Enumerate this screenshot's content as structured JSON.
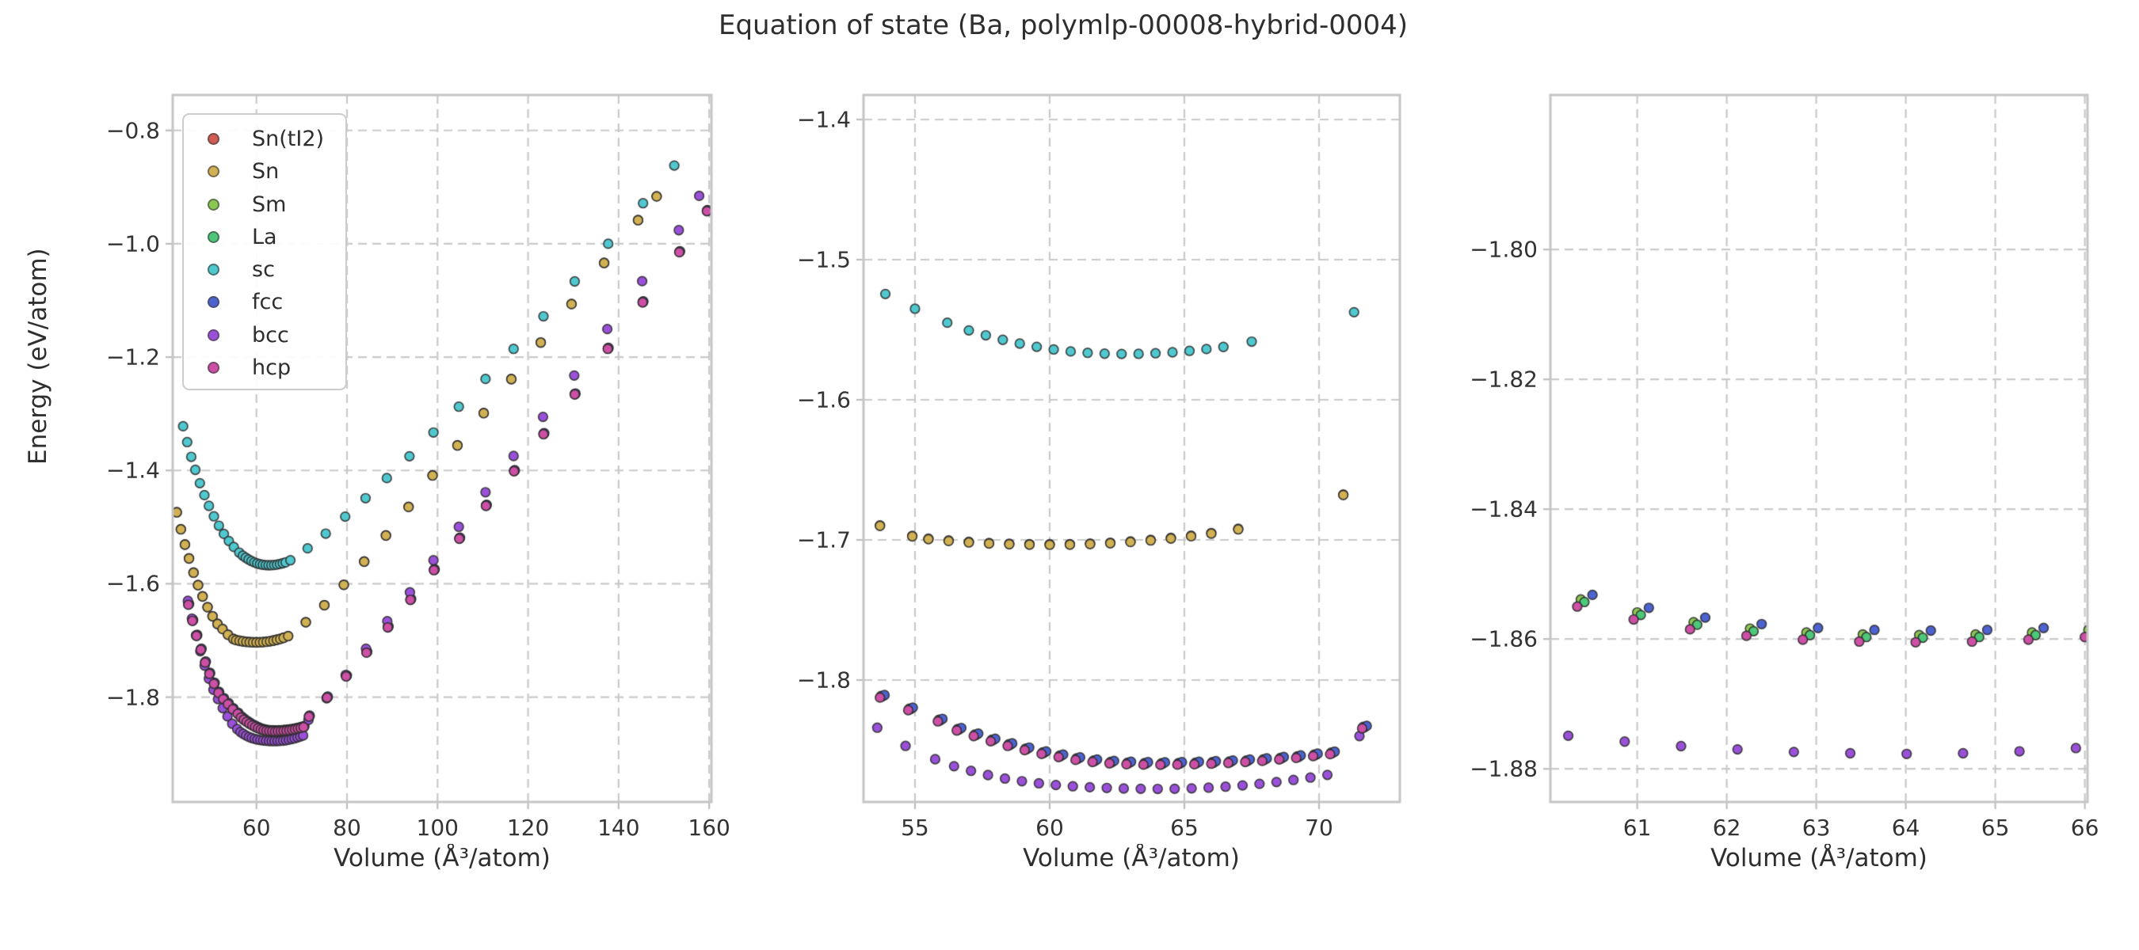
{
  "title": "Equation of state (Ba, polymlp-00008-hybrid-0004)",
  "ylabel_text": "Energy (eV/atom)",
  "legend": {
    "items": [
      {
        "label": "Sn(tI2)",
        "color": "#d05c52"
      },
      {
        "label": "Sn",
        "color": "#d1b153"
      },
      {
        "label": "Sm",
        "color": "#8bc853"
      },
      {
        "label": "La",
        "color": "#4cc878"
      },
      {
        "label": "sc",
        "color": "#4fc8cf"
      },
      {
        "label": "fcc",
        "color": "#4d63d2"
      },
      {
        "label": "bcc",
        "color": "#9b50da"
      },
      {
        "label": "hcp",
        "color": "#cd4fa6"
      }
    ]
  },
  "style": {
    "grid_color": "#c9c9c9",
    "spine_color": "#c5c5c5",
    "tick_color": "#bdbdbd",
    "marker_edge": "rgba(42,42,42,0.85)",
    "text_color": "#2e2e2e"
  },
  "chart_data": {
    "type": "scatter",
    "title": "Equation of state (Ba, polymlp-00008-hybrid-0004)",
    "xlabel": "Volume (Å³/atom)",
    "ylabel": "Energy (eV/atom)",
    "grid": "dashed",
    "legend_position": "upper-left of first panel",
    "panels": [
      {
        "xlabel": "Volume (Å³/atom)",
        "xlim": [
          41.5,
          160.5
        ],
        "ylim": [
          -1.985,
          -0.7375
        ],
        "xticks": [
          60,
          80,
          100,
          120,
          140,
          160
        ],
        "xtick_labels": [
          "60",
          "80",
          "100",
          "120",
          "140",
          "160"
        ],
        "yticks": [
          -0.8,
          -1.0,
          -1.2,
          -1.4,
          -1.6,
          -1.8
        ],
        "ytick_labels": [
          "−0.8",
          "−1.0",
          "−1.2",
          "−1.4",
          "−1.6",
          "−1.8"
        ]
      },
      {
        "xlabel": "Volume (Å³/atom)",
        "xlim": [
          53.09,
          73.0
        ],
        "ylim": [
          -1.887,
          -1.3825
        ],
        "xticks": [
          55,
          60,
          65,
          70
        ],
        "xtick_labels": [
          "55",
          "60",
          "65",
          "70"
        ],
        "yticks": [
          -1.4,
          -1.5,
          -1.6,
          -1.7,
          -1.8
        ],
        "ytick_labels": [
          "−1.4",
          "−1.5",
          "−1.6",
          "−1.7",
          "−1.8"
        ]
      },
      {
        "xlabel": "Volume (Å³/atom)",
        "xlim": [
          60.03,
          66.03
        ],
        "ylim": [
          -1.8851,
          -1.7762
        ],
        "xticks": [
          61,
          62,
          63,
          64,
          65,
          66
        ],
        "xtick_labels": [
          "61",
          "62",
          "63",
          "64",
          "65",
          "66"
        ],
        "yticks": [
          -1.8,
          -1.82,
          -1.84,
          -1.86,
          -1.88
        ],
        "ytick_labels": [
          "−1.80",
          "−1.82",
          "−1.84",
          "−1.86",
          "−1.88"
        ]
      }
    ],
    "series": [
      {
        "name": "Sn(tI2)",
        "color": "#d05c52",
        "V": [
          42.4,
          43.3,
          44.2,
          45.1,
          46.1,
          47.1,
          48.1,
          49.2,
          50.3,
          51.4,
          52.5,
          53.7,
          54.9,
          55.5,
          56.25,
          57.0,
          57.75,
          58.5,
          59.25,
          60.0,
          60.75,
          61.5,
          62.25,
          63.0,
          63.75,
          64.5,
          65.25,
          66.0,
          67.0,
          70.9,
          75.0,
          79.3,
          83.8,
          88.6,
          93.6,
          98.9,
          104.4,
          110.2,
          116.3,
          122.8,
          129.6,
          136.8,
          144.3,
          148.4
        ],
        "E": [
          -1.4736,
          -1.5036,
          -1.5306,
          -1.5551,
          -1.5801,
          -1.6021,
          -1.6221,
          -1.6411,
          -1.6571,
          -1.6706,
          -1.6796,
          -1.6896,
          -1.6971,
          -1.6991,
          -1.7004,
          -1.7014,
          -1.7022,
          -1.7027,
          -1.703,
          -1.7031,
          -1.703,
          -1.7026,
          -1.702,
          -1.7011,
          -1.7,
          -1.6986,
          -1.697,
          -1.6951,
          -1.6921,
          -1.6676,
          -1.6376,
          -1.6016,
          -1.5606,
          -1.5146,
          -1.4641,
          -1.4086,
          -1.3556,
          -1.2986,
          -1.2386,
          -1.1741,
          -1.1061,
          -1.0336,
          -0.9581,
          -0.9161
        ]
      },
      {
        "name": "Sn",
        "color": "#d1b153",
        "V": [
          42.4,
          43.3,
          44.2,
          45.1,
          46.1,
          47.1,
          48.1,
          49.2,
          50.3,
          51.4,
          52.5,
          53.7,
          54.9,
          55.5,
          56.25,
          57.0,
          57.75,
          58.5,
          59.25,
          60.0,
          60.75,
          61.5,
          62.25,
          63.0,
          63.75,
          64.5,
          65.25,
          66.0,
          67.0,
          70.9,
          75.0,
          79.3,
          83.8,
          88.6,
          93.6,
          98.9,
          104.4,
          110.2,
          116.3,
          122.8,
          129.6,
          136.8,
          144.3,
          148.4
        ],
        "E": [
          -1.474,
          -1.504,
          -1.531,
          -1.5555,
          -1.5805,
          -1.6025,
          -1.6225,
          -1.6415,
          -1.6575,
          -1.671,
          -1.68,
          -1.69,
          -1.6975,
          -1.6995,
          -1.7008,
          -1.7018,
          -1.7026,
          -1.7031,
          -1.7034,
          -1.7035,
          -1.7034,
          -1.703,
          -1.7024,
          -1.7015,
          -1.7004,
          -1.699,
          -1.6974,
          -1.6955,
          -1.6925,
          -1.668,
          -1.638,
          -1.602,
          -1.561,
          -1.515,
          -1.4645,
          -1.409,
          -1.356,
          -1.299,
          -1.239,
          -1.1745,
          -1.1065,
          -1.034,
          -0.9585,
          -0.9165
        ]
      },
      {
        "name": "Sm",
        "color": "#8bc853",
        "V": [
          44.99,
          45.89,
          46.79,
          47.74,
          48.69,
          49.64,
          50.64,
          51.64,
          52.69,
          53.74,
          54.79,
          55.89,
          56.59,
          57.22,
          57.85,
          58.48,
          59.11,
          59.74,
          60.37,
          61.0,
          61.63,
          62.26,
          62.89,
          63.52,
          64.15,
          64.78,
          65.41,
          66.04,
          66.67,
          67.3,
          67.93,
          68.56,
          69.19,
          69.82,
          70.45,
          71.64,
          75.64,
          79.84,
          84.34,
          89.04,
          94.04,
          99.24,
          104.84,
          110.74,
          116.94,
          123.44,
          130.34,
          137.64,
          145.34,
          153.44,
          159.54
        ],
        "E": [
          -1.6359,
          -1.6644,
          -1.6909,
          -1.7154,
          -1.7379,
          -1.7579,
          -1.7754,
          -1.7914,
          -1.8024,
          -1.8114,
          -1.8204,
          -1.8284,
          -1.8349,
          -1.8389,
          -1.8426,
          -1.8459,
          -1.8489,
          -1.8516,
          -1.8539,
          -1.8559,
          -1.8574,
          -1.8584,
          -1.859,
          -1.8593,
          -1.8594,
          -1.8593,
          -1.859,
          -1.8586,
          -1.8581,
          -1.8574,
          -1.8566,
          -1.8556,
          -1.8545,
          -1.8532,
          -1.8518,
          -1.8334,
          -1.7999,
          -1.7624,
          -1.7204,
          -1.6759,
          -1.6274,
          -1.5749,
          -1.5194,
          -1.4614,
          -1.4004,
          -1.3349,
          -1.2649,
          -1.1844,
          -1.1024,
          -1.0139,
          -0.9414
        ]
      },
      {
        "name": "La",
        "color": "#4cc878",
        "V": [
          45.03,
          45.93,
          46.83,
          47.78,
          48.73,
          49.68,
          50.68,
          51.68,
          52.73,
          53.78,
          54.83,
          55.93,
          56.63,
          57.26,
          57.89,
          58.52,
          59.15,
          59.78,
          60.41,
          61.04,
          61.67,
          62.3,
          62.93,
          63.56,
          64.19,
          64.82,
          65.45,
          66.08,
          66.71,
          67.34,
          67.97,
          68.6,
          69.23,
          69.86,
          70.49,
          71.68,
          75.68,
          79.88,
          84.38,
          89.08,
          94.08,
          99.28,
          104.88,
          110.78,
          116.98,
          123.48,
          130.38,
          137.68,
          145.38,
          153.48,
          159.58
        ],
        "E": [
          -1.6363,
          -1.6648,
          -1.6913,
          -1.7158,
          -1.7383,
          -1.7583,
          -1.7758,
          -1.7918,
          -1.8028,
          -1.8118,
          -1.8208,
          -1.8288,
          -1.8353,
          -1.8393,
          -1.843,
          -1.8463,
          -1.8493,
          -1.852,
          -1.8543,
          -1.8563,
          -1.8578,
          -1.8588,
          -1.8594,
          -1.8597,
          -1.8598,
          -1.8597,
          -1.8594,
          -1.859,
          -1.8585,
          -1.8578,
          -1.857,
          -1.856,
          -1.8549,
          -1.8536,
          -1.8522,
          -1.8338,
          -1.8003,
          -1.7628,
          -1.7208,
          -1.6763,
          -1.6278,
          -1.5753,
          -1.5198,
          -1.4618,
          -1.4008,
          -1.3353,
          -1.2653,
          -1.1848,
          -1.1028,
          -1.0143,
          -0.9418
        ]
      },
      {
        "name": "sc",
        "color": "#4fc8cf",
        "V": [
          43.8,
          44.7,
          45.6,
          46.5,
          47.5,
          48.5,
          49.5,
          50.6,
          51.7,
          52.8,
          53.9,
          55.0,
          56.2,
          57.0,
          57.63,
          58.26,
          58.89,
          59.52,
          60.15,
          60.78,
          61.41,
          62.04,
          62.67,
          63.3,
          63.93,
          64.56,
          65.19,
          65.82,
          66.45,
          67.5,
          71.3,
          75.3,
          79.6,
          84.1,
          88.8,
          93.8,
          99.1,
          104.7,
          110.6,
          116.8,
          123.4,
          130.3,
          137.7,
          145.4,
          152.3
        ],
        "E": [
          -1.322,
          -1.35,
          -1.376,
          -1.399,
          -1.4225,
          -1.4435,
          -1.4625,
          -1.481,
          -1.4975,
          -1.512,
          -1.5245,
          -1.535,
          -1.545,
          -1.5505,
          -1.554,
          -1.5572,
          -1.5599,
          -1.5622,
          -1.5641,
          -1.5655,
          -1.5665,
          -1.5671,
          -1.5673,
          -1.5672,
          -1.5668,
          -1.5661,
          -1.5651,
          -1.5638,
          -1.5623,
          -1.5585,
          -1.5375,
          -1.5115,
          -1.4815,
          -1.449,
          -1.4135,
          -1.375,
          -1.333,
          -1.2875,
          -1.2385,
          -1.1855,
          -1.128,
          -1.0665,
          -1.0,
          -0.9285,
          -0.862
        ]
      },
      {
        "name": "fcc",
        "color": "#4d63d2",
        "V": [
          45.12,
          46.02,
          46.92,
          47.87,
          48.82,
          49.77,
          50.77,
          51.77,
          52.82,
          53.87,
          54.92,
          56.02,
          56.72,
          57.35,
          57.98,
          58.61,
          59.24,
          59.87,
          60.5,
          61.13,
          61.76,
          62.39,
          63.02,
          63.65,
          64.28,
          64.91,
          65.54,
          66.17,
          66.8,
          67.43,
          68.06,
          68.69,
          69.32,
          69.95,
          70.58,
          71.77,
          75.77,
          79.97,
          84.47,
          89.17,
          94.17,
          99.37,
          104.97,
          110.87,
          117.07,
          123.57,
          130.47,
          137.77,
          145.47,
          153.57,
          159.67
        ],
        "E": [
          -1.6352,
          -1.6637,
          -1.6902,
          -1.7147,
          -1.7372,
          -1.7572,
          -1.7747,
          -1.7907,
          -1.8017,
          -1.8107,
          -1.8197,
          -1.8277,
          -1.8342,
          -1.8382,
          -1.8419,
          -1.8452,
          -1.8482,
          -1.8509,
          -1.8532,
          -1.8552,
          -1.8567,
          -1.8577,
          -1.8583,
          -1.8586,
          -1.8587,
          -1.8586,
          -1.8583,
          -1.8579,
          -1.8574,
          -1.8567,
          -1.8559,
          -1.8549,
          -1.8538,
          -1.8525,
          -1.8511,
          -1.8327,
          -1.7992,
          -1.7617,
          -1.7197,
          -1.6752,
          -1.6267,
          -1.5742,
          -1.5187,
          -1.4607,
          -1.3997,
          -1.3342,
          -1.2642,
          -1.1837,
          -1.1017,
          -1.0132,
          -0.9407
        ]
      },
      {
        "name": "bcc",
        "color": "#9b50da",
        "V": [
          44.85,
          45.75,
          46.65,
          47.6,
          48.55,
          49.5,
          50.5,
          51.5,
          52.55,
          53.6,
          54.65,
          55.75,
          56.45,
          57.08,
          57.71,
          58.34,
          58.97,
          59.6,
          60.23,
          60.86,
          61.49,
          62.12,
          62.75,
          63.38,
          64.01,
          64.64,
          65.27,
          65.9,
          66.53,
          67.16,
          67.79,
          68.42,
          69.05,
          69.68,
          70.31,
          71.5,
          75.5,
          79.7,
          84.2,
          88.9,
          93.9,
          99.1,
          104.7,
          110.6,
          116.8,
          123.3,
          130.2,
          137.5,
          145.2,
          153.3,
          157.8
        ],
        "E": [
          -1.63,
          -1.6615,
          -1.691,
          -1.719,
          -1.7445,
          -1.7675,
          -1.787,
          -1.8035,
          -1.8195,
          -1.834,
          -1.847,
          -1.8565,
          -1.8615,
          -1.8648,
          -1.8678,
          -1.8703,
          -1.8722,
          -1.8737,
          -1.8749,
          -1.8758,
          -1.8765,
          -1.877,
          -1.8774,
          -1.8776,
          -1.8777,
          -1.8776,
          -1.8773,
          -1.8768,
          -1.8761,
          -1.8752,
          -1.8741,
          -1.8728,
          -1.8713,
          -1.8696,
          -1.8677,
          -1.84,
          -1.802,
          -1.761,
          -1.7145,
          -1.666,
          -1.615,
          -1.5585,
          -1.4995,
          -1.4385,
          -1.3745,
          -1.3055,
          -1.2325,
          -1.1505,
          -1.066,
          -0.976,
          -0.9155
        ]
      },
      {
        "name": "hcp",
        "color": "#cd4fa6",
        "V": [
          44.95,
          45.85,
          46.75,
          47.7,
          48.65,
          49.6,
          50.6,
          51.6,
          52.65,
          53.7,
          54.75,
          55.85,
          56.55,
          57.18,
          57.81,
          58.44,
          59.07,
          59.7,
          60.33,
          60.96,
          61.59,
          62.22,
          62.85,
          63.48,
          64.11,
          64.74,
          65.37,
          66.0,
          66.63,
          67.26,
          67.89,
          68.52,
          69.15,
          69.78,
          70.41,
          71.6,
          75.6,
          79.8,
          84.3,
          89.0,
          94.0,
          99.2,
          104.8,
          110.7,
          116.9,
          123.4,
          130.3,
          137.6,
          145.3,
          153.4,
          159.5
        ],
        "E": [
          -1.637,
          -1.6655,
          -1.692,
          -1.7165,
          -1.739,
          -1.759,
          -1.7765,
          -1.7925,
          -1.8035,
          -1.8125,
          -1.8215,
          -1.8295,
          -1.836,
          -1.84,
          -1.8437,
          -1.847,
          -1.85,
          -1.8527,
          -1.855,
          -1.857,
          -1.8585,
          -1.8595,
          -1.8601,
          -1.8604,
          -1.8605,
          -1.8604,
          -1.8601,
          -1.8597,
          -1.8592,
          -1.8585,
          -1.8577,
          -1.8567,
          -1.8556,
          -1.8543,
          -1.8529,
          -1.8345,
          -1.801,
          -1.7635,
          -1.7215,
          -1.677,
          -1.6285,
          -1.576,
          -1.5205,
          -1.4625,
          -1.4015,
          -1.336,
          -1.266,
          -1.1855,
          -1.1035,
          -1.015,
          -0.9425
        ]
      }
    ]
  }
}
